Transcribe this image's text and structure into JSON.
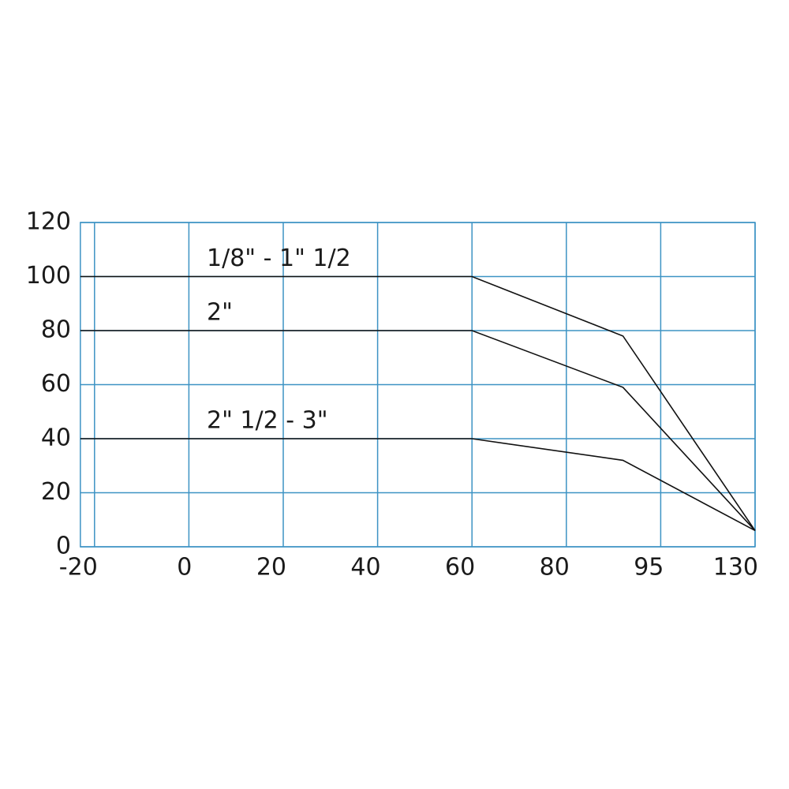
{
  "chart_data": {
    "type": "line",
    "xlim": [
      -23,
      130
    ],
    "xticks": [
      -20,
      0,
      20,
      40,
      60,
      80,
      95,
      130
    ],
    "ylim": [
      0,
      120
    ],
    "yticks": [
      0,
      20,
      40,
      60,
      80,
      100,
      120
    ],
    "grid": true,
    "series": [
      {
        "name": "1/8\" - 1\" 1/2",
        "color": "#111111",
        "x": [
          -23,
          60,
          89,
          130
        ],
        "values": [
          100,
          100,
          78,
          6
        ]
      },
      {
        "name": "2\"",
        "color": "#111111",
        "x": [
          -23,
          60,
          89,
          130
        ],
        "values": [
          80,
          80,
          59,
          6
        ]
      },
      {
        "name": "2\" 1/2 - 3\"",
        "color": "#111111",
        "x": [
          -23,
          60,
          89,
          130
        ],
        "values": [
          40,
          40,
          32,
          6
        ]
      }
    ]
  }
}
